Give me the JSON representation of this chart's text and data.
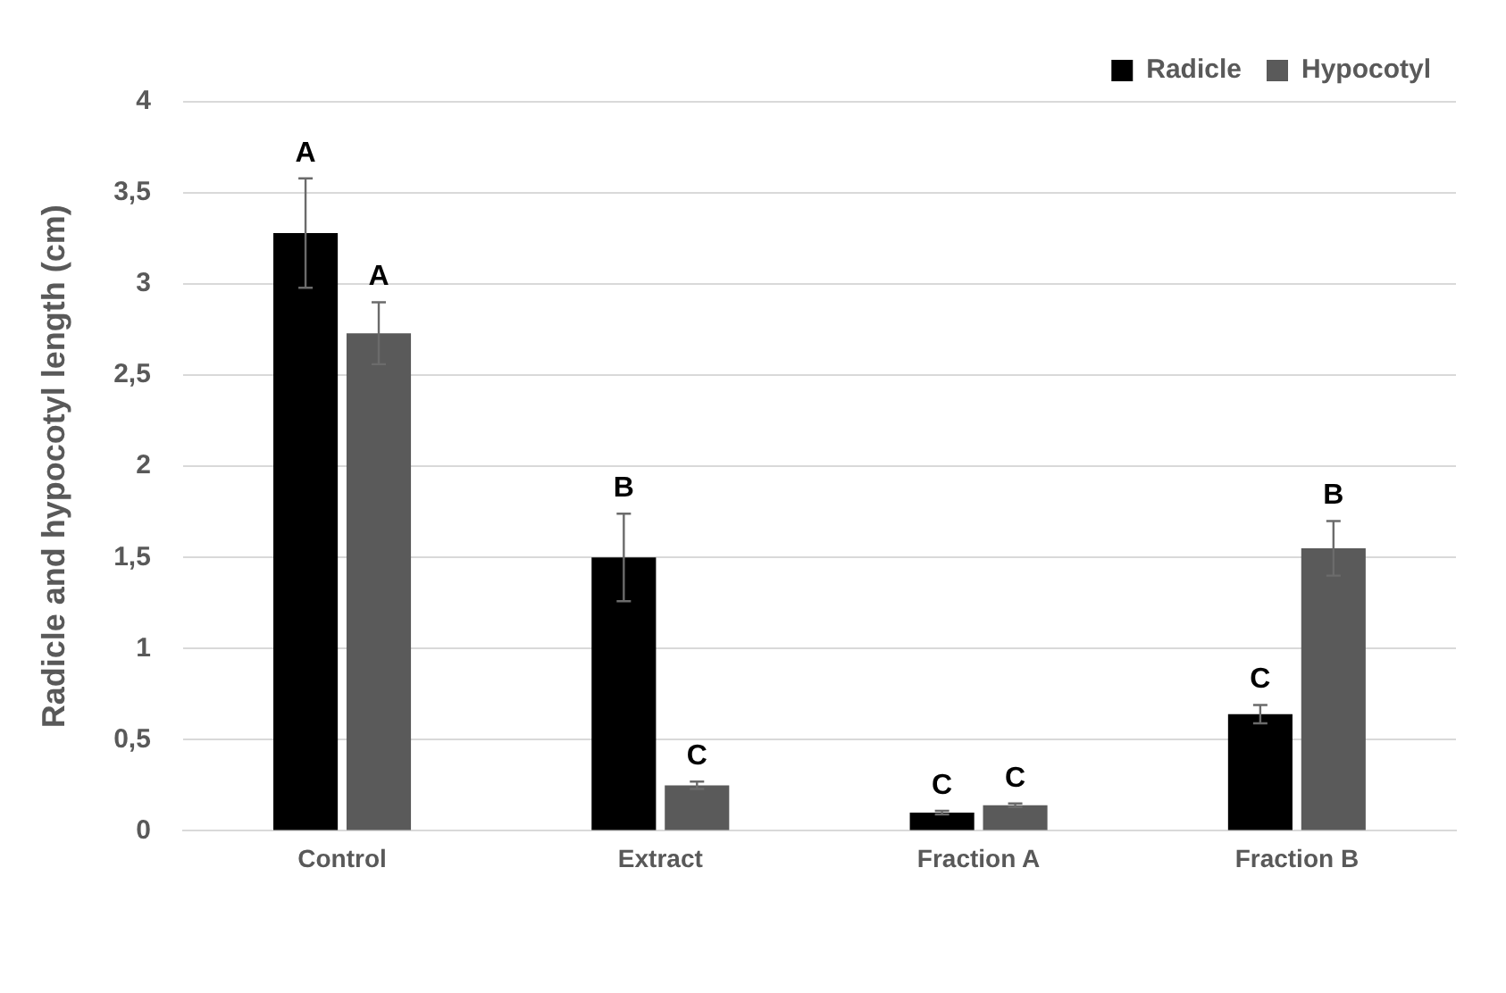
{
  "chart_data": {
    "type": "bar",
    "ylabel": "Radicle and hypocotyl length (cm)",
    "categories": [
      "Control",
      "Extract",
      "Fraction A",
      "Fraction B"
    ],
    "series": [
      {
        "name": "Radicle",
        "color": "#000000",
        "values": [
          3.28,
          1.5,
          0.1,
          0.64
        ],
        "errors": [
          0.3,
          0.24,
          0.01,
          0.05
        ]
      },
      {
        "name": "Hypocotyl",
        "color": "#5a5a5a",
        "values": [
          2.73,
          0.25,
          0.14,
          1.55
        ],
        "errors": [
          0.17,
          0.02,
          0.01,
          0.15
        ]
      }
    ],
    "ylim": [
      0,
      4
    ],
    "yticks": [
      0,
      {
        "value": 0.5,
        "label": "0,5"
      },
      1,
      {
        "value": 1.5,
        "label": "1,5"
      },
      2,
      {
        "value": 2.5,
        "label": "2,5"
      },
      3,
      {
        "value": 3.5,
        "label": "3,5"
      },
      4
    ],
    "grid": "y",
    "legend": "top right",
    "annotations": [
      "A",
      "A",
      "B",
      "C",
      "C",
      "C",
      "C",
      "B"
    ]
  }
}
